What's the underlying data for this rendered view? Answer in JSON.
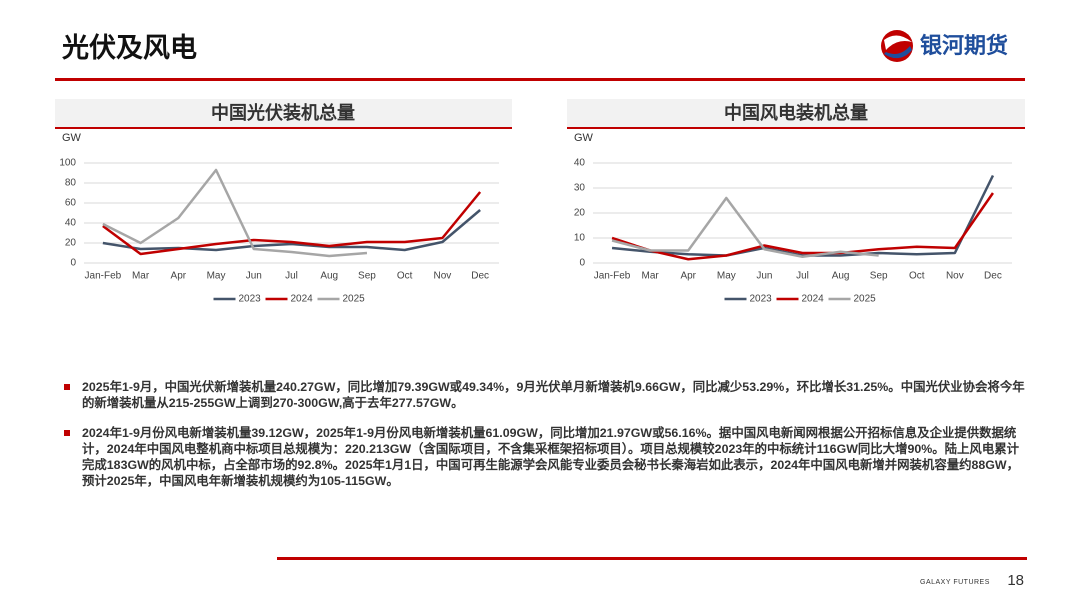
{
  "header": {
    "title": "光伏及风电",
    "logo": "银河期货"
  },
  "chart_data": [
    {
      "type": "line",
      "title": "中国光伏装机总量",
      "y_label": "GW",
      "categories": [
        "Jan-Feb",
        "Mar",
        "Apr",
        "May",
        "Jun",
        "Jul",
        "Aug",
        "Sep",
        "Oct",
        "Nov",
        "Dec"
      ],
      "series": [
        {
          "name": "2023",
          "color": "#44546a",
          "values": [
            20,
            14,
            15,
            13,
            17,
            19,
            16,
            16,
            13,
            21,
            53
          ]
        },
        {
          "name": "2024",
          "color": "#c00000",
          "values": [
            37,
            9,
            14,
            19,
            23,
            21,
            17,
            21,
            21,
            25,
            71
          ]
        },
        {
          "name": "2025",
          "color": "#a6a6a6",
          "values": [
            39,
            20,
            45,
            93,
            14,
            11,
            7,
            10,
            null,
            null,
            null
          ]
        }
      ],
      "ylim": [
        0,
        100
      ],
      "yticks": [
        0,
        20,
        40,
        60,
        80,
        100
      ],
      "grid": true,
      "legend": "bottom"
    },
    {
      "type": "line",
      "title": "中国风电装机总量",
      "y_label": "GW",
      "categories": [
        "Jan-Feb",
        "Mar",
        "Apr",
        "May",
        "Jun",
        "Jul",
        "Aug",
        "Sep",
        "Oct",
        "Nov",
        "Dec"
      ],
      "series": [
        {
          "name": "2023",
          "color": "#44546a",
          "values": [
            6,
            4.5,
            3.5,
            3,
            6,
            3,
            3,
            4,
            3.5,
            4,
            35
          ]
        },
        {
          "name": "2024",
          "color": "#c00000",
          "values": [
            10,
            5,
            1.5,
            3,
            7,
            4,
            4,
            5.5,
            6.5,
            6,
            28
          ]
        },
        {
          "name": "2025",
          "color": "#a6a6a6",
          "values": [
            9,
            5,
            5,
            26,
            5.5,
            2.5,
            4.5,
            3,
            null,
            null,
            null
          ]
        }
      ],
      "ylim": [
        0,
        40
      ],
      "yticks": [
        0,
        10,
        20,
        30,
        40
      ],
      "grid": true,
      "legend": "bottom"
    }
  ],
  "bullets": [
    "2025年1-9月，中国光伏新增装机量240.27GW，同比增加79.39GW或49.34%，9月光伏单月新增装机9.66GW，同比减少53.29%，环比增长31.25%。中国光伏业协会将今年的新增装机量从215-255GW上调到270-300GW,高于去年277.57GW。",
    "2024年1-9月份风电新增装机量39.12GW，2025年1-9月份风电新增装机量61.09GW，同比增加21.97GW或56.16%。据中国风电新闻网根据公开招标信息及企业提供数据统计，2024年中国风电整机商中标项目总规模为：220.213GW（含国际项目，不含集采框架招标项目）。项目总规模较2023年的中标统计116GW同比大增90%。陆上风电累计完成183GW的风机中标，占全部市场的92.8%。2025年1月1日，中国可再生能源学会风能专业委员会秘书长秦海岩如此表示，2024年中国风电新增并网装机容量约88GW，预计2025年，中国风电年新增装机规模约为105-115GW。"
  ],
  "footer": {
    "brand": "GALAXY FUTURES",
    "page": 18
  }
}
